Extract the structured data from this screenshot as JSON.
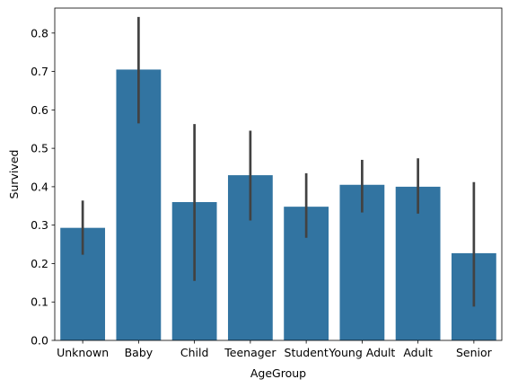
{
  "chart_data": {
    "type": "bar",
    "categories": [
      "Unknown",
      "Baby",
      "Child",
      "Teenager",
      "Student",
      "Young Adult",
      "Adult",
      "Senior"
    ],
    "values": [
      0.293,
      0.705,
      0.36,
      0.43,
      0.348,
      0.405,
      0.4,
      0.227
    ],
    "error_low": [
      0.223,
      0.565,
      0.155,
      0.312,
      0.267,
      0.333,
      0.33,
      0.088
    ],
    "error_high": [
      0.364,
      0.842,
      0.563,
      0.546,
      0.435,
      0.47,
      0.474,
      0.412
    ],
    "title": "",
    "xlabel": "AgeGroup",
    "ylabel": "Survived",
    "ylim": [
      0,
      0.865
    ],
    "yticks": [
      0.0,
      0.1,
      0.2,
      0.3,
      0.4,
      0.5,
      0.6,
      0.7,
      0.8
    ],
    "ytick_labels": [
      "0.0",
      "0.1",
      "0.2",
      "0.3",
      "0.4",
      "0.5",
      "0.6",
      "0.7",
      "0.8"
    ],
    "grid": false,
    "bar_color": "#3274a1",
    "error_color": "#424242"
  }
}
